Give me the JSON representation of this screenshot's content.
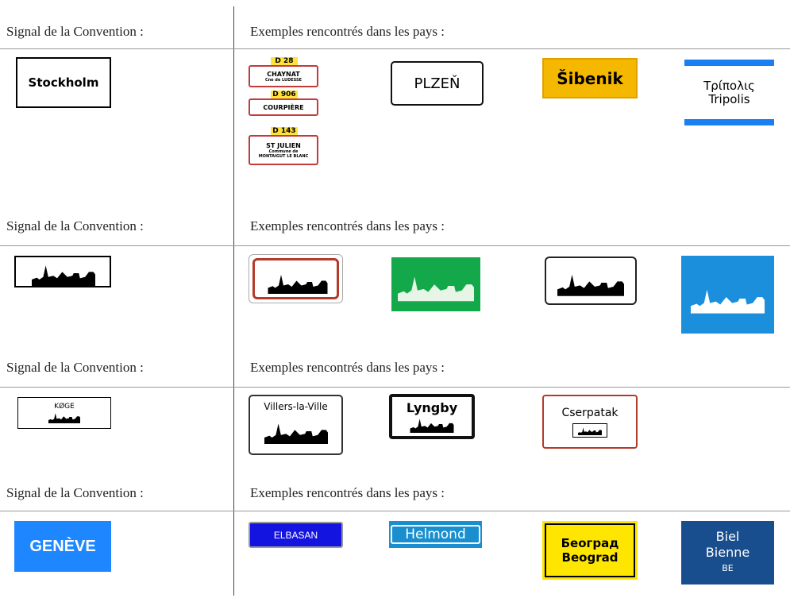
{
  "sections": [
    {
      "convention_label": "Signal de la Convention :",
      "examples_label": "Exemples rencontrés dans les pays :",
      "convention_sign": [
        "Stockholm"
      ],
      "examples": [
        [
          "D 28",
          "CHAYNAT",
          "Cne de LUDESSE",
          "D 906",
          "COURPIÈRE",
          "D 143",
          "ST JULIEN",
          "Commune de",
          "MONTAIGUT LE BLANC"
        ],
        [
          "PLZEŇ"
        ],
        [
          "Šibenik"
        ],
        [
          "Τρίπολις",
          "Tripolis"
        ]
      ]
    },
    {
      "convention_label": "Signal de la Convention :",
      "examples_label": "Exemples rencontrés dans les pays :"
    },
    {
      "convention_label": "Signal de la Convention :",
      "examples_label": "Exemples rencontrés dans les pays :",
      "convention_sign": [
        "KØGE"
      ],
      "examples": [
        [
          "Villers-la-Ville"
        ],
        [
          "Lyngby"
        ],
        [
          "Cserpatak"
        ]
      ]
    },
    {
      "convention_label": "Signal de la Convention :",
      "examples_label": "Exemples rencontrés dans les pays :",
      "convention_sign": [
        "GENÈVE"
      ],
      "examples": [
        [
          "ELBASAN"
        ],
        [
          "Helmond"
        ],
        [
          "Београд",
          "Beograd"
        ],
        [
          "Biel",
          "Bienne",
          "BE"
        ]
      ]
    }
  ]
}
